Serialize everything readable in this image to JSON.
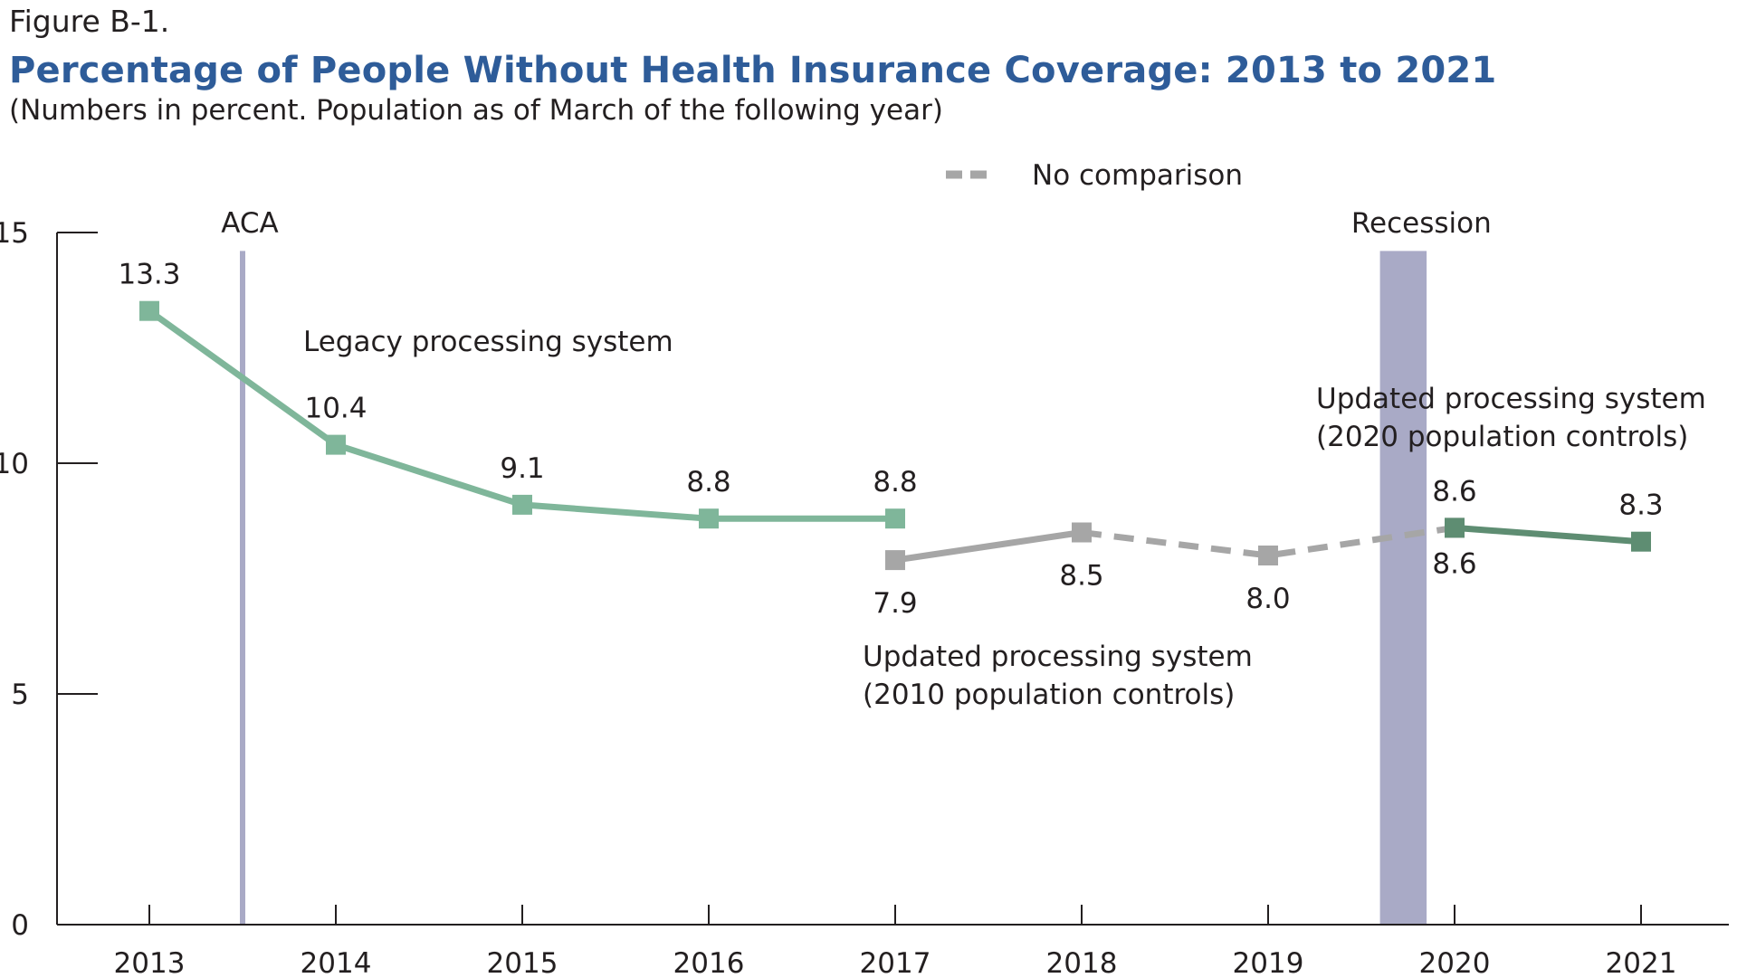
{
  "figure_label": "Figure B-1.",
  "title": "Percentage of People Without Health Insurance Coverage: 2013 to 2021",
  "subtitle": "(Numbers in percent. Population as of March of the following year)",
  "legend": {
    "label": "No comparison",
    "position": "top-right"
  },
  "colors": {
    "legacy": "#7fb69a",
    "updated_2010": "#a6a6a6",
    "updated_2020": "#5e8d72",
    "recession_band": "#a9aac6",
    "aca_line": "#a9aac6",
    "title": "#2e5c99"
  },
  "annotations": {
    "aca": "ACA",
    "recession": "Recession",
    "legacy": "Legacy processing system",
    "updated_2010_line1": "Updated processing system",
    "updated_2010_line2": "(2010 population controls)",
    "updated_2020_line1": "Updated processing system",
    "updated_2020_line2": "(2020 population controls)"
  },
  "chart_data": {
    "type": "line",
    "title": "Percentage of People Without Health Insurance Coverage: 2013 to 2021",
    "subtitle": "(Numbers in percent. Population as of March of the following year)",
    "categories": [
      "2013",
      "2014",
      "2015",
      "2016",
      "2017",
      "2018",
      "2019",
      "2020",
      "2021"
    ],
    "ylim": [
      0,
      15
    ],
    "yticks": [
      0,
      5,
      10,
      15
    ],
    "grid": false,
    "aca_marker_x": 2013.5,
    "recession_band_x": [
      2019.6,
      2019.85
    ],
    "series": [
      {
        "name": "Legacy processing system",
        "x": [
          2013,
          2014,
          2015,
          2016,
          2017
        ],
        "values": [
          13.3,
          10.4,
          9.1,
          8.8,
          8.8
        ],
        "labels": [
          "13.3",
          "10.4",
          "9.1",
          "8.8",
          "8.8"
        ],
        "label_pos": [
          "above",
          "above",
          "above",
          "above",
          "above"
        ],
        "color_key": "legacy",
        "style": "solid"
      },
      {
        "name": "Updated processing system (2010 population controls)",
        "x": [
          2017,
          2018
        ],
        "values": [
          7.9,
          8.5
        ],
        "labels": [
          "7.9",
          "8.5"
        ],
        "label_pos": [
          "below",
          "below"
        ],
        "color_key": "updated_2010",
        "style": "solid"
      },
      {
        "name": "No comparison",
        "x": [
          2018,
          2019,
          2020
        ],
        "values": [
          8.5,
          8.0,
          8.6
        ],
        "labels": [
          "",
          "8.0",
          ""
        ],
        "label_pos": [
          "none",
          "below",
          "none"
        ],
        "color_key": "updated_2010",
        "style": "dashed"
      },
      {
        "name": "Updated processing system (2020 population controls)",
        "x": [
          2020,
          2021
        ],
        "values": [
          8.6,
          8.3
        ],
        "labels": [
          "8.6",
          "8.3"
        ],
        "label_pos": [
          "above",
          "above"
        ],
        "color_key": "updated_2020",
        "style": "solid"
      }
    ],
    "extra_point_labels": [
      {
        "x": 2020,
        "value": 8.6,
        "label": "8.6",
        "position": "below"
      }
    ]
  }
}
